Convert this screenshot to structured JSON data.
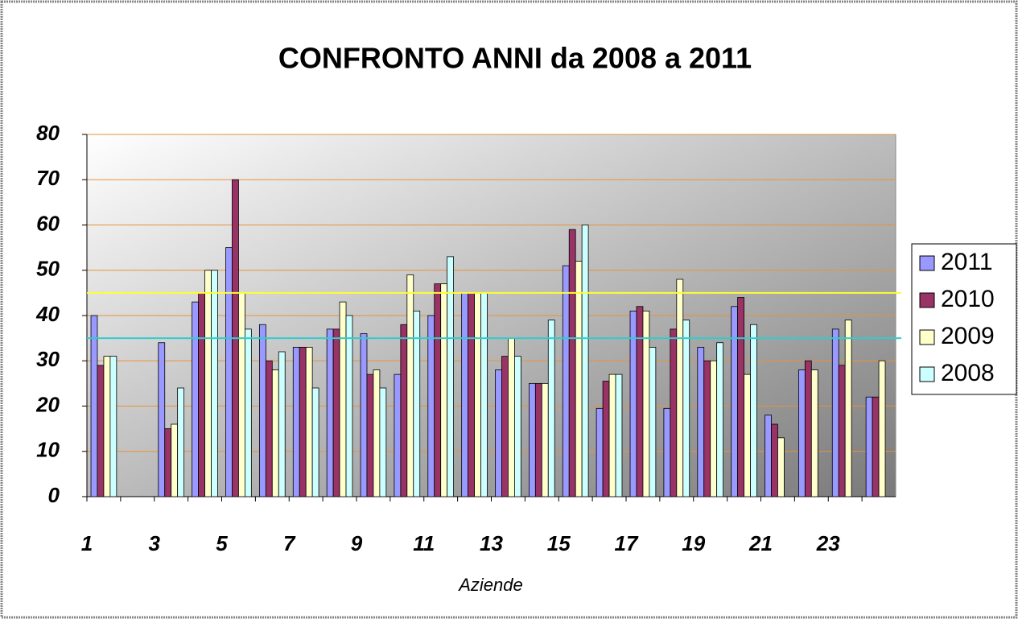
{
  "chart_data": {
    "type": "bar",
    "title": "CONFRONTO ANNI da 2008 a 2011",
    "x_label": "Aziende",
    "categories": [
      "1",
      null,
      "3",
      null,
      "5",
      null,
      "7",
      null,
      "9",
      null,
      "11",
      null,
      "13",
      null,
      "15",
      null,
      "17",
      null,
      "19",
      null,
      "21",
      null,
      "23",
      null
    ],
    "series": [
      {
        "name": "2011",
        "color": "#9999ff",
        "values": [
          40,
          null,
          34,
          43,
          55,
          38,
          33,
          37,
          36,
          27,
          40,
          45,
          28,
          25,
          51,
          19.5,
          41,
          19.5,
          33,
          42,
          18,
          28,
          37,
          22
        ]
      },
      {
        "name": "2010",
        "color": "#993366",
        "values": [
          29,
          null,
          15,
          45,
          70,
          30,
          33,
          37,
          27,
          38,
          47,
          45,
          31,
          25,
          59,
          25.5,
          42,
          37,
          30,
          44,
          16,
          30,
          29,
          22
        ]
      },
      {
        "name": "2009",
        "color": "#ffffcc",
        "values": [
          31,
          null,
          16,
          50,
          45,
          28,
          33,
          43,
          28,
          49,
          47,
          45,
          35,
          25,
          52,
          27,
          41,
          48,
          30,
          27,
          13,
          28,
          39,
          30
        ]
      },
      {
        "name": "2008",
        "color": "#ccffff",
        "values": [
          31,
          null,
          24,
          50,
          37,
          32,
          24,
          40,
          24,
          41,
          53,
          45,
          31,
          39,
          60,
          27,
          33,
          39,
          34,
          38,
          null,
          null,
          null,
          null
        ]
      }
    ],
    "reference_lines": [
      {
        "value": 45,
        "color": "#ffff33"
      },
      {
        "value": 35,
        "color": "#33cccc"
      }
    ],
    "ylim": [
      0,
      80
    ],
    "yticks": [
      0,
      10,
      20,
      30,
      40,
      50,
      60,
      70,
      80
    ],
    "grid": true,
    "grid_color": "#e8913a",
    "legend": "right"
  }
}
